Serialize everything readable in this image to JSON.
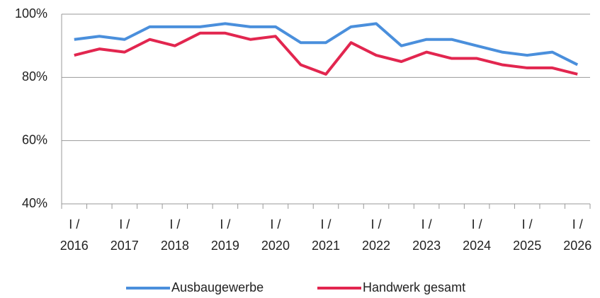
{
  "chart_data": {
    "type": "line",
    "categories": [
      "I / 2016",
      null,
      "I / 2017",
      null,
      "I / 2018",
      null,
      "I / 2019",
      null,
      "I / 2020",
      null,
      "I / 2021",
      null,
      "I / 2022",
      null,
      "I / 2023",
      null,
      "I / 2024",
      null,
      "I / 2025",
      null,
      "I / 2026"
    ],
    "series": [
      {
        "name": "Ausbaugewerbe",
        "color": "#4a8fdc",
        "values": [
          92,
          93,
          92,
          96,
          96,
          96,
          97,
          96,
          96,
          91,
          91,
          96,
          97,
          90,
          92,
          92,
          90,
          88,
          87,
          88,
          84
        ]
      },
      {
        "name": "Handwerk gesamt",
        "color": "#e2264f",
        "values": [
          87,
          89,
          88,
          92,
          90,
          94,
          94,
          92,
          93,
          84,
          81,
          91,
          87,
          85,
          88,
          86,
          86,
          84,
          83,
          83,
          81
        ]
      }
    ],
    "ylim": [
      40,
      100
    ],
    "yticks": [
      {
        "value": 40,
        "label": "40%"
      },
      {
        "value": 60,
        "label": "60%"
      },
      {
        "value": 80,
        "label": "80%"
      },
      {
        "value": 100,
        "label": "100%"
      }
    ],
    "grid": true,
    "legend": "bottom"
  }
}
